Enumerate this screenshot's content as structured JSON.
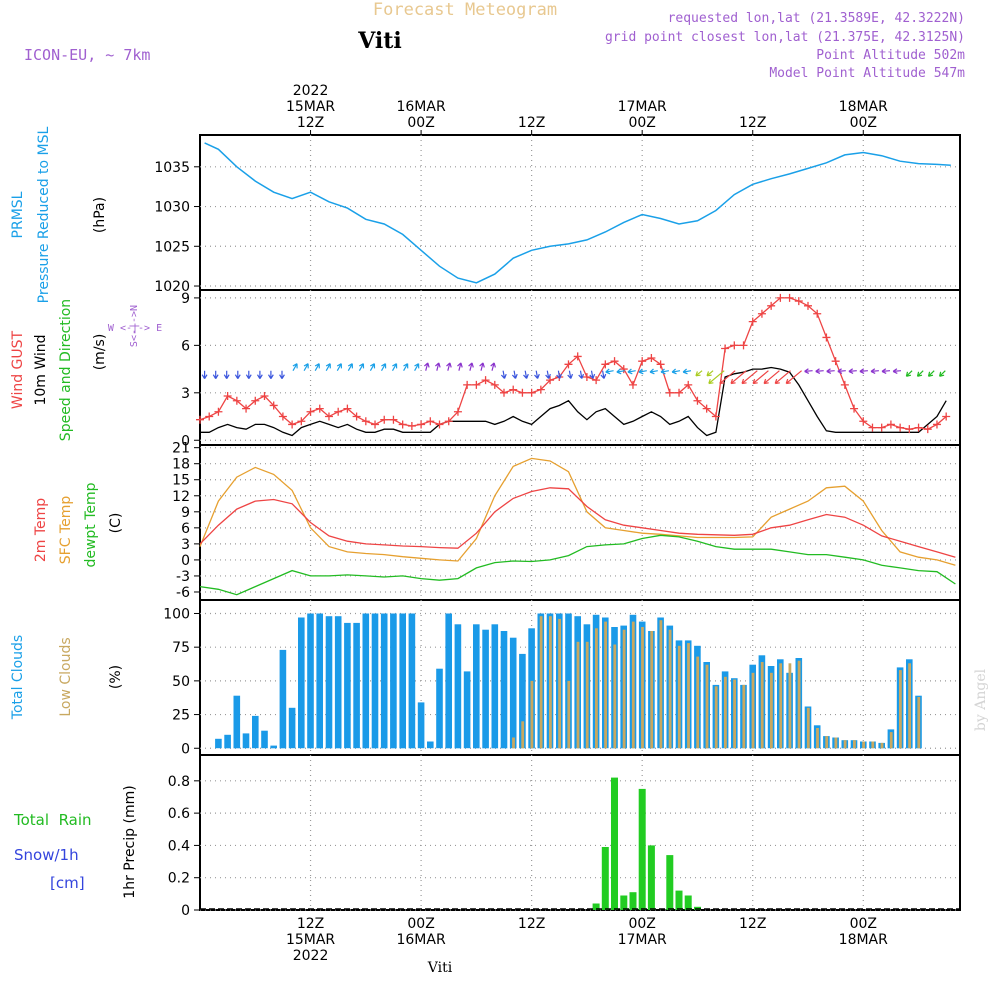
{
  "header": {
    "title": "Forecast Meteogram",
    "station": "Viti",
    "model": "ICON-EU, ~ 7km",
    "requested": "requested lon,lat (21.3589E, 42.3222N)",
    "gridpoint": "grid point closest lon,lat (21.375E, 42.3125N)",
    "point_alt": "Point Altitude 502m",
    "model_alt": "Model Point Altitude 547m"
  },
  "footer": {
    "station": "Viti",
    "watermark": "by Angel"
  },
  "time_axis": {
    "top": [
      {
        "t": 12,
        "lines": [
          "2022",
          "15MAR",
          "12Z"
        ]
      },
      {
        "t": 24,
        "lines": [
          "16MAR",
          "00Z"
        ]
      },
      {
        "t": 36,
        "lines": [
          "12Z"
        ]
      },
      {
        "t": 48,
        "lines": [
          "17MAR",
          "00Z"
        ]
      },
      {
        "t": 60,
        "lines": [
          "12Z"
        ]
      },
      {
        "t": 72,
        "lines": [
          "18MAR",
          "00Z"
        ]
      }
    ],
    "bottom": [
      {
        "t": 12,
        "lines": [
          "12Z",
          "15MAR",
          "2022"
        ]
      },
      {
        "t": 24,
        "lines": [
          "00Z",
          "16MAR"
        ]
      },
      {
        "t": 36,
        "lines": [
          "12Z"
        ]
      },
      {
        "t": 48,
        "lines": [
          "00Z",
          "17MAR"
        ]
      },
      {
        "t": 60,
        "lines": [
          "12Z"
        ]
      },
      {
        "t": 72,
        "lines": [
          "00Z",
          "18MAR"
        ]
      }
    ]
  },
  "panel_labels": {
    "pressure": {
      "line1": "PRMSL",
      "line2": "Pressure Reduced to MSL",
      "unit": "(hPa)"
    },
    "wind": {
      "gust": "Wind GUST",
      "wind10": "10m Wind",
      "speed": "Speed and Direction",
      "unit": "(m/s)",
      "compass_we": "W <-|-> E",
      "compass_ns": "S<-|->N"
    },
    "temp": {
      "t2m": "2m Temp",
      "sfc": "SFC Temp",
      "dewpt": "dewpt Temp",
      "unit": "(C)"
    },
    "clouds": {
      "total": "Total Clouds",
      "low": "Low Clouds",
      "unit": "(%)"
    },
    "precip": {
      "rain": "Total  Rain",
      "snow": "Snow/1h",
      "snow_unit": "[cm]",
      "unit": "1hr Precip (mm)"
    }
  },
  "colors": {
    "pressure": "#1aa0e8",
    "gust": "#ee4444",
    "wind10": "#000000",
    "t2m": "#ee4444",
    "sfc": "#e6a030",
    "dewpt": "#22bb22",
    "total_cloud": "#1a9ae8",
    "low_cloud": "#c8a860",
    "rain": "#22cc22",
    "label_purple": "#a060d0",
    "label_blue": "#1aa0e8",
    "label_red": "#ee4444",
    "label_green": "#22bb22",
    "label_orange": "#e6a030",
    "label_snow": "#3344dd"
  },
  "chart_data": [
    {
      "type": "line",
      "title": "PRMSL Pressure Reduced to MSL",
      "ylabel": "(hPa)",
      "ylim": [
        1019.5,
        1039
      ],
      "yticks": [
        1020,
        1025,
        1030,
        1035
      ],
      "x": [
        0.5,
        2,
        4,
        6,
        8,
        10,
        12,
        14,
        16,
        18,
        20,
        22,
        24,
        26,
        28,
        30,
        32,
        34,
        36,
        38,
        40,
        42,
        44,
        46,
        48,
        50,
        52,
        54,
        56,
        58,
        60,
        62,
        64,
        66,
        68,
        70,
        72,
        74,
        76,
        78,
        80,
        81.5
      ],
      "series": [
        {
          "name": "PRMSL",
          "values": [
            1038,
            1037.2,
            1035,
            1033.2,
            1031.8,
            1031,
            1031.8,
            1030.6,
            1029.8,
            1028.4,
            1027.8,
            1026.5,
            1024.5,
            1022.5,
            1021,
            1020.4,
            1021.5,
            1023.5,
            1024.5,
            1025,
            1025.3,
            1025.8,
            1026.8,
            1028,
            1029,
            1028.5,
            1027.8,
            1028.2,
            1029.5,
            1031.5,
            1032.8,
            1033.5,
            1034.1,
            1034.8,
            1035.5,
            1036.5,
            1036.8,
            1036.4,
            1035.7,
            1035.4,
            1035.3,
            1035.2
          ]
        }
      ]
    },
    {
      "type": "line",
      "title": "Wind GUST / 10m Wind",
      "ylabel": "(m/s)",
      "ylim": [
        -0.3,
        9.5
      ],
      "yticks": [
        0,
        3,
        6,
        9
      ],
      "x": [
        0,
        1,
        2,
        3,
        4,
        5,
        6,
        7,
        8,
        9,
        10,
        11,
        12,
        13,
        14,
        15,
        16,
        17,
        18,
        19,
        20,
        21,
        22,
        23,
        24,
        25,
        26,
        27,
        28,
        29,
        30,
        31,
        32,
        33,
        34,
        35,
        36,
        37,
        38,
        39,
        40,
        41,
        42,
        43,
        44,
        45,
        46,
        47,
        48,
        49,
        50,
        51,
        52,
        53,
        54,
        55,
        56,
        57,
        58,
        59,
        60,
        61,
        62,
        63,
        64,
        65,
        66,
        67,
        68,
        69,
        70,
        71,
        72,
        73,
        74,
        75,
        76,
        77,
        78,
        79,
        80,
        81
      ],
      "series": [
        {
          "name": "Wind GUST",
          "values": [
            1.3,
            1.5,
            1.8,
            2.8,
            2.5,
            2.0,
            2.5,
            2.8,
            2.2,
            1.5,
            1.0,
            1.2,
            1.8,
            2.0,
            1.5,
            1.8,
            2.0,
            1.5,
            1.2,
            1.0,
            1.3,
            1.3,
            1.0,
            0.9,
            1.0,
            1.2,
            1.0,
            1.2,
            1.8,
            3.5,
            3.5,
            3.8,
            3.5,
            3.0,
            3.2,
            3.0,
            3.0,
            3.2,
            3.8,
            4.0,
            4.8,
            5.3,
            4.0,
            3.8,
            4.8,
            5.0,
            4.5,
            3.5,
            5.0,
            5.2,
            4.8,
            3.0,
            3.0,
            3.5,
            2.5,
            2.0,
            1.5,
            5.8,
            6.0,
            6.0,
            7.5,
            8.0,
            8.5,
            9.0,
            9.0,
            8.8,
            8.5,
            8.0,
            6.5,
            5.0,
            3.5,
            2.0,
            1.2,
            0.8,
            0.8,
            1.0,
            0.8,
            0.7,
            0.8,
            0.7,
            1.0,
            1.5
          ]
        },
        {
          "name": "10m Wind",
          "values": [
            0.5,
            0.5,
            0.8,
            1.0,
            0.8,
            0.7,
            1.0,
            1.0,
            0.8,
            0.5,
            0.3,
            0.8,
            1.0,
            1.2,
            1.0,
            0.8,
            1.0,
            0.7,
            0.5,
            0.5,
            0.7,
            0.7,
            0.5,
            0.5,
            0.5,
            0.5,
            1.0,
            1.2,
            1.2,
            1.2,
            1.2,
            1.2,
            1.0,
            1.2,
            1.5,
            1.2,
            1.0,
            1.5,
            2.0,
            2.2,
            2.5,
            1.8,
            1.3,
            1.8,
            2.0,
            1.5,
            1.0,
            1.2,
            1.5,
            1.8,
            1.5,
            1.0,
            1.2,
            1.5,
            0.8,
            0.3,
            0.5,
            4.0,
            4.2,
            4.3,
            4.5,
            4.5,
            4.6,
            4.5,
            4.3,
            3.5,
            2.5,
            1.5,
            0.6,
            0.5,
            0.5,
            0.5,
            0.5,
            0.5,
            0.5,
            0.5,
            0.5,
            0.5,
            0.5,
            1.0,
            1.5,
            2.5
          ]
        }
      ]
    },
    {
      "type": "line",
      "title": "2m Temp / SFC Temp / dewpt Temp",
      "ylabel": "(C)",
      "ylim": [
        -7.5,
        21.5
      ],
      "yticks": [
        -6,
        -3,
        0,
        3,
        6,
        9,
        12,
        15,
        18,
        21
      ],
      "x": [
        0,
        2,
        4,
        6,
        8,
        10,
        12,
        14,
        16,
        18,
        20,
        22,
        24,
        26,
        28,
        30,
        32,
        34,
        36,
        38,
        40,
        42,
        44,
        46,
        48,
        50,
        52,
        54,
        56,
        58,
        60,
        62,
        64,
        66,
        68,
        70,
        72,
        74,
        76,
        78,
        80,
        82
      ],
      "series": [
        {
          "name": "2m Temp",
          "values": [
            3,
            6.5,
            9.5,
            11,
            11.3,
            10.5,
            7,
            4.5,
            3.5,
            3,
            2.8,
            2.6,
            2.5,
            2.3,
            2.2,
            5,
            9,
            11.5,
            12.8,
            13.5,
            13.3,
            10,
            7.5,
            6.5,
            6,
            5.5,
            5,
            4.8,
            4.7,
            4.6,
            4.8,
            6,
            6.5,
            7.5,
            8.5,
            8,
            6.5,
            4.5,
            3.5,
            2.5,
            1.5,
            0.5
          ]
        },
        {
          "name": "SFC Temp",
          "values": [
            2.5,
            11,
            15.5,
            17.3,
            16,
            13,
            6,
            2.5,
            1.5,
            1.2,
            1,
            0.6,
            0.3,
            0,
            -0.2,
            4,
            12,
            17.5,
            19,
            18.5,
            16.5,
            9,
            6,
            5.5,
            5,
            4.8,
            4.5,
            4.2,
            4.2,
            4.2,
            4.3,
            8,
            9.5,
            11,
            13.5,
            13.8,
            11,
            5.5,
            1.5,
            0.5,
            0,
            -1
          ]
        },
        {
          "name": "dewpt Temp",
          "values": [
            -5,
            -5.5,
            -6.5,
            -5,
            -3.5,
            -2,
            -3,
            -3,
            -2.8,
            -3,
            -3.2,
            -3,
            -3.5,
            -3.8,
            -3.5,
            -1.5,
            -0.5,
            -0.2,
            -0.3,
            0,
            0.8,
            2.5,
            2.8,
            3,
            4,
            4.6,
            4.3,
            3.5,
            2.5,
            2,
            2,
            2,
            1.5,
            1,
            1,
            0.5,
            0,
            -1,
            -1.5,
            -2,
            -2.2,
            -4.5
          ]
        }
      ]
    },
    {
      "type": "bar",
      "title": "Total Clouds / Low Clouds",
      "ylabel": "(%)",
      "ylim": [
        -5,
        110
      ],
      "yticks": [
        0,
        25,
        50,
        75,
        100
      ],
      "x": [
        1,
        2,
        3,
        4,
        5,
        6,
        7,
        8,
        9,
        10,
        11,
        12,
        13,
        14,
        15,
        16,
        17,
        18,
        19,
        20,
        21,
        22,
        23,
        24,
        25,
        26,
        27,
        28,
        29,
        30,
        31,
        32,
        33,
        34,
        35,
        36,
        37,
        38,
        39,
        40,
        41,
        42,
        43,
        44,
        45,
        46,
        47,
        48,
        49,
        50,
        51,
        52,
        53,
        54,
        55,
        56,
        57,
        58,
        59,
        60,
        61,
        62,
        63,
        64,
        65,
        66,
        67,
        68,
        69,
        70,
        71,
        72,
        73,
        74,
        75,
        76,
        77,
        78,
        79,
        80,
        81,
        82
      ],
      "series": [
        {
          "name": "Total Clouds",
          "values": [
            0,
            7,
            10,
            39,
            11,
            24,
            13,
            2,
            73,
            30,
            97,
            100,
            100,
            98,
            98,
            93,
            93,
            100,
            100,
            100,
            100,
            100,
            100,
            34,
            5,
            59,
            100,
            92,
            57,
            92,
            88,
            92,
            87,
            82,
            70,
            89,
            100,
            100,
            100,
            100,
            98,
            92,
            99,
            97,
            90,
            91,
            99,
            94,
            87,
            97,
            91,
            80,
            80,
            76,
            64,
            47,
            57,
            52,
            47,
            62,
            69,
            61,
            66,
            56,
            67,
            31,
            17,
            9,
            8,
            6,
            6,
            5,
            5,
            4,
            14,
            60,
            66,
            39,
            0,
            0,
            0,
            0
          ]
        },
        {
          "name": "Low Clouds",
          "values": [
            0,
            0,
            0,
            0,
            0,
            0,
            0,
            0,
            0,
            0,
            0,
            0,
            0,
            0,
            0,
            0,
            0,
            0,
            0,
            0,
            0,
            0,
            0,
            0,
            0,
            0,
            0,
            0,
            0,
            0,
            0,
            0,
            0,
            8,
            20,
            50,
            98,
            98,
            96,
            50,
            79,
            79,
            89,
            94,
            77,
            88,
            94,
            90,
            87,
            95,
            88,
            76,
            78,
            68,
            62,
            46,
            53,
            51,
            47,
            56,
            64,
            56,
            63,
            63,
            65,
            30,
            15,
            9,
            8,
            6,
            6,
            5,
            5,
            4,
            12,
            58,
            63,
            38,
            0,
            0,
            0,
            0
          ]
        }
      ]
    },
    {
      "type": "bar",
      "title": "Total Rain / Snow",
      "ylabel": "1hr Precip (mm)",
      "ylim": [
        0,
        0.96
      ],
      "yticks": [
        0,
        0.2,
        0.4,
        0.6,
        0.8
      ],
      "x": [
        43,
        44,
        45,
        46,
        47,
        48,
        49,
        50,
        51,
        52,
        53,
        54
      ],
      "series": [
        {
          "name": "Total Rain",
          "values": [
            0.04,
            0.39,
            0.82,
            0.09,
            0.11,
            0.75,
            0.4,
            0,
            0.34,
            0.12,
            0.09,
            0.02
          ]
        },
        {
          "name": "Snow/1h",
          "values": [
            0,
            0,
            0,
            0,
            0,
            0,
            0,
            0,
            0,
            0,
            0,
            0
          ]
        }
      ]
    }
  ]
}
